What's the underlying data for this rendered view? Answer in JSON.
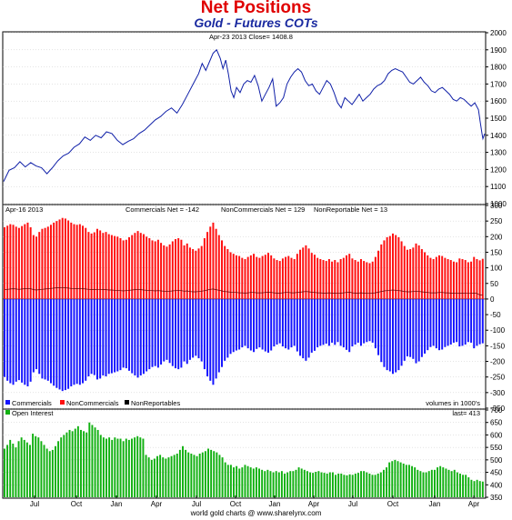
{
  "header": {
    "title": "Net Positions",
    "subtitle": "Gold - Futures COTs"
  },
  "footer": "world gold charts @ www.sharelynx.com",
  "colors": {
    "price_line": "#1020a8",
    "commercials": "#1414ff",
    "noncommercials": "#ff1010",
    "nonreportables": "#000000",
    "open_interest": "#10b010",
    "frame": "#000000",
    "grid": "#c8c8c8"
  },
  "chart_data": [
    {
      "type": "line",
      "label_left": "Apr-23 2013   Close= 1408.8",
      "ylim": [
        1000,
        2000
      ],
      "yticks": [
        1000,
        1100,
        1200,
        1300,
        1400,
        1500,
        1600,
        1700,
        1800,
        1900,
        2000
      ],
      "series": [
        {
          "points": [
            [
              0,
              1130
            ],
            [
              6,
              1195
            ],
            [
              12,
              1210
            ],
            [
              18,
              1245
            ],
            [
              24,
              1215
            ],
            [
              30,
              1240
            ],
            [
              36,
              1220
            ],
            [
              42,
              1210
            ],
            [
              48,
              1175
            ],
            [
              54,
              1210
            ],
            [
              60,
              1250
            ],
            [
              66,
              1280
            ],
            [
              72,
              1295
            ],
            [
              78,
              1330
            ],
            [
              84,
              1350
            ],
            [
              90,
              1390
            ],
            [
              96,
              1370
            ],
            [
              102,
              1400
            ],
            [
              108,
              1385
            ],
            [
              114,
              1420
            ],
            [
              120,
              1410
            ],
            [
              126,
              1370
            ],
            [
              132,
              1345
            ],
            [
              138,
              1365
            ],
            [
              144,
              1380
            ],
            [
              150,
              1410
            ],
            [
              156,
              1430
            ],
            [
              162,
              1460
            ],
            [
              168,
              1490
            ],
            [
              174,
              1510
            ],
            [
              180,
              1540
            ],
            [
              186,
              1560
            ],
            [
              192,
              1530
            ],
            [
              198,
              1580
            ],
            [
              204,
              1640
            ],
            [
              210,
              1700
            ],
            [
              216,
              1760
            ],
            [
              220,
              1820
            ],
            [
              224,
              1780
            ],
            [
              228,
              1830
            ],
            [
              232,
              1880
            ],
            [
              236,
              1900
            ],
            [
              240,
              1850
            ],
            [
              243,
              1790
            ],
            [
              246,
              1840
            ],
            [
              249,
              1760
            ],
            [
              252,
              1660
            ],
            [
              255,
              1620
            ],
            [
              258,
              1680
            ],
            [
              262,
              1650
            ],
            [
              266,
              1700
            ],
            [
              270,
              1720
            ],
            [
              274,
              1710
            ],
            [
              278,
              1750
            ],
            [
              282,
              1690
            ],
            [
              286,
              1600
            ],
            [
              290,
              1640
            ],
            [
              294,
              1680
            ],
            [
              298,
              1730
            ],
            [
              302,
              1570
            ],
            [
              306,
              1590
            ],
            [
              310,
              1620
            ],
            [
              314,
              1700
            ],
            [
              318,
              1740
            ],
            [
              322,
              1770
            ],
            [
              326,
              1790
            ],
            [
              330,
              1770
            ],
            [
              334,
              1720
            ],
            [
              338,
              1690
            ],
            [
              342,
              1700
            ],
            [
              346,
              1660
            ],
            [
              350,
              1640
            ],
            [
              354,
              1680
            ],
            [
              358,
              1720
            ],
            [
              362,
              1700
            ],
            [
              366,
              1650
            ],
            [
              370,
              1590
            ],
            [
              374,
              1560
            ],
            [
              378,
              1620
            ],
            [
              382,
              1600
            ],
            [
              386,
              1580
            ],
            [
              390,
              1610
            ],
            [
              394,
              1640
            ],
            [
              398,
              1600
            ],
            [
              402,
              1620
            ],
            [
              406,
              1640
            ],
            [
              410,
              1670
            ],
            [
              414,
              1690
            ],
            [
              418,
              1700
            ],
            [
              422,
              1720
            ],
            [
              426,
              1760
            ],
            [
              430,
              1780
            ],
            [
              434,
              1790
            ],
            [
              438,
              1780
            ],
            [
              442,
              1770
            ],
            [
              446,
              1740
            ],
            [
              450,
              1710
            ],
            [
              454,
              1700
            ],
            [
              458,
              1720
            ],
            [
              462,
              1740
            ],
            [
              466,
              1710
            ],
            [
              470,
              1690
            ],
            [
              474,
              1660
            ],
            [
              478,
              1650
            ],
            [
              482,
              1670
            ],
            [
              486,
              1680
            ],
            [
              490,
              1660
            ],
            [
              494,
              1640
            ],
            [
              498,
              1610
            ],
            [
              502,
              1600
            ],
            [
              506,
              1620
            ],
            [
              510,
              1610
            ],
            [
              514,
              1590
            ],
            [
              518,
              1570
            ],
            [
              522,
              1590
            ],
            [
              526,
              1550
            ],
            [
              528,
              1480
            ],
            [
              530,
              1410
            ],
            [
              531,
              1380
            ],
            [
              533,
              1408.8
            ]
          ]
        }
      ]
    },
    {
      "type": "bar",
      "label_left": "Apr-16 2013",
      "legend_top": [
        {
          "text": "Commercials Net = -142"
        },
        {
          "text": "NonCommercials Net = 129"
        },
        {
          "text": "NonReportable Net = 13"
        }
      ],
      "ylim": [
        -350,
        300
      ],
      "yticks": [
        -350,
        -300,
        -250,
        -200,
        -150,
        -100,
        -50,
        0,
        50,
        100,
        150,
        200,
        250,
        300
      ],
      "noncommercials": [
        230,
        235,
        240,
        238,
        232,
        228,
        234,
        240,
        245,
        230,
        205,
        200,
        215,
        225,
        228,
        232,
        238,
        245,
        250,
        255,
        260,
        258,
        252,
        245,
        240,
        238,
        240,
        235,
        228,
        215,
        210,
        214,
        225,
        220,
        212,
        215,
        208,
        205,
        202,
        200,
        195,
        188,
        190,
        198,
        205,
        212,
        218,
        212,
        208,
        200,
        195,
        188,
        185,
        190,
        180,
        172,
        168,
        175,
        185,
        192,
        195,
        190,
        172,
        178,
        165,
        160,
        155,
        162,
        170,
        195,
        215,
        232,
        245,
        225,
        205,
        188,
        170,
        160,
        150,
        145,
        140,
        138,
        132,
        128,
        135,
        140,
        145,
        135,
        132,
        138,
        142,
        148,
        140,
        130,
        125,
        122,
        130,
        135,
        138,
        132,
        128,
        145,
        158,
        165,
        172,
        162,
        148,
        142,
        132,
        128,
        125,
        122,
        128,
        120,
        125,
        118,
        128,
        132,
        140,
        145,
        130,
        125,
        120,
        128,
        122,
        118,
        115,
        120,
        135,
        155,
        175,
        188,
        198,
        202,
        210,
        205,
        198,
        185,
        170,
        158,
        160,
        165,
        178,
        172,
        160,
        150,
        140,
        132,
        128,
        135,
        140,
        138,
        132,
        128,
        125,
        120,
        118,
        130,
        128,
        125,
        118,
        120,
        135,
        128,
        124,
        129
      ],
      "commercials": [
        -250,
        -262,
        -270,
        -275,
        -265,
        -260,
        -268,
        -275,
        -280,
        -265,
        -235,
        -225,
        -240,
        -255,
        -258,
        -262,
        -270,
        -278,
        -285,
        -290,
        -295,
        -292,
        -288,
        -280,
        -275,
        -272,
        -275,
        -270,
        -262,
        -248,
        -240,
        -244,
        -258,
        -255,
        -245,
        -248,
        -240,
        -238,
        -235,
        -232,
        -228,
        -220,
        -222,
        -230,
        -238,
        -245,
        -252,
        -245,
        -240,
        -232,
        -225,
        -218,
        -215,
        -220,
        -210,
        -200,
        -195,
        -205,
        -215,
        -222,
        -225,
        -220,
        -200,
        -208,
        -195,
        -188,
        -182,
        -190,
        -200,
        -225,
        -248,
        -262,
        -275,
        -255,
        -235,
        -218,
        -198,
        -188,
        -176,
        -170,
        -165,
        -162,
        -155,
        -150,
        -158,
        -165,
        -170,
        -160,
        -155,
        -162,
        -168,
        -172,
        -165,
        -152,
        -146,
        -142,
        -152,
        -158,
        -162,
        -155,
        -150,
        -168,
        -182,
        -190,
        -198,
        -188,
        -172,
        -166,
        -155,
        -150,
        -147,
        -143,
        -150,
        -140,
        -147,
        -138,
        -150,
        -155,
        -163,
        -170,
        -152,
        -146,
        -140,
        -150,
        -142,
        -138,
        -135,
        -140,
        -158,
        -180,
        -202,
        -218,
        -228,
        -232,
        -240,
        -235,
        -228,
        -214,
        -198,
        -184,
        -186,
        -192,
        -206,
        -200,
        -186,
        -175,
        -164,
        -154,
        -150,
        -158,
        -164,
        -162,
        -154,
        -150,
        -146,
        -140,
        -138,
        -152,
        -150,
        -146,
        -138,
        -140,
        -158,
        -150,
        -145,
        -142
      ],
      "nonreportables_line": [
        30,
        31,
        32,
        33,
        32,
        31,
        32,
        33,
        34,
        33,
        30,
        29,
        30,
        31,
        32,
        33,
        34,
        35,
        36,
        36,
        37,
        36,
        35,
        34,
        34,
        33,
        34,
        33,
        32,
        31,
        30,
        30,
        31,
        31,
        30,
        30,
        29,
        29,
        28,
        28,
        27,
        26,
        27,
        28,
        29,
        30,
        31,
        30,
        29,
        28,
        27,
        27,
        26,
        27,
        26,
        25,
        24,
        25,
        26,
        27,
        28,
        27,
        25,
        26,
        24,
        23,
        23,
        24,
        25,
        27,
        29,
        31,
        32,
        30,
        28,
        26,
        24,
        23,
        22,
        21,
        21,
        20,
        20,
        19,
        20,
        21,
        21,
        20,
        20,
        20,
        21,
        22,
        21,
        20,
        19,
        19,
        20,
        21,
        21,
        20,
        20,
        21,
        22,
        23,
        24,
        23,
        22,
        21,
        20,
        20,
        19,
        19,
        20,
        19,
        19,
        18,
        19,
        20,
        21,
        22,
        20,
        19,
        19,
        20,
        19,
        18,
        18,
        19,
        20,
        22,
        24,
        26,
        27,
        28,
        29,
        28,
        27,
        26,
        24,
        23,
        23,
        24,
        25,
        24,
        23,
        22,
        21,
        20,
        20,
        20,
        21,
        21,
        20,
        20,
        19,
        19,
        18,
        19,
        19,
        18,
        18,
        18,
        19,
        18,
        13,
        13
      ],
      "legend_bottom": [
        {
          "text": "Commercials",
          "color": "#1414ff"
        },
        {
          "text": "NonCommercials",
          "color": "#ff1010"
        },
        {
          "text": "NonReportables",
          "color": "#000000"
        }
      ],
      "note": "volumes in 1000's"
    },
    {
      "type": "bar",
      "legend": "Open Interest",
      "last_label": "last= 413",
      "ylim": [
        350,
        700
      ],
      "yticks": [
        350,
        400,
        450,
        500,
        550,
        600,
        650,
        700
      ],
      "values": [
        545,
        560,
        580,
        565,
        550,
        575,
        590,
        580,
        570,
        560,
        605,
        595,
        590,
        575,
        560,
        545,
        535,
        540,
        555,
        575,
        590,
        600,
        610,
        620,
        615,
        625,
        635,
        620,
        615,
        610,
        650,
        640,
        630,
        620,
        600,
        590,
        585,
        590,
        580,
        590,
        585,
        585,
        575,
        585,
        580,
        585,
        590,
        595,
        590,
        585,
        520,
        510,
        500,
        505,
        515,
        520,
        510,
        505,
        510,
        515,
        520,
        525,
        540,
        555,
        540,
        530,
        525,
        520,
        515,
        525,
        530,
        535,
        545,
        540,
        535,
        530,
        520,
        510,
        490,
        480,
        480,
        470,
        475,
        465,
        470,
        480,
        475,
        470,
        465,
        470,
        465,
        460,
        455,
        460,
        455,
        450,
        455,
        450,
        455,
        445,
        450,
        455,
        455,
        460,
        470,
        465,
        460,
        455,
        450,
        448,
        452,
        455,
        450,
        448,
        445,
        450,
        450,
        440,
        445,
        445,
        440,
        438,
        442,
        440,
        445,
        448,
        455,
        455,
        450,
        445,
        440,
        440,
        445,
        450,
        460,
        470,
        490,
        495,
        500,
        495,
        490,
        485,
        480,
        480,
        475,
        470,
        460,
        455,
        450,
        450,
        455,
        460,
        460,
        470,
        475,
        470,
        465,
        460,
        455,
        460,
        450,
        445,
        440,
        440,
        430,
        420,
        415,
        420,
        415,
        413
      ]
    }
  ],
  "x_axis": {
    "labels": [
      "Jul",
      "Oct",
      "Jan",
      "Apr",
      "Jul",
      "Oct",
      "Jan",
      "Apr",
      "Jul",
      "Oct",
      "Jan",
      "Apr"
    ]
  }
}
